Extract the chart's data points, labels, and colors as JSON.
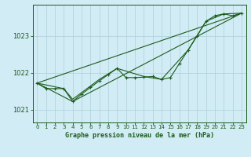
{
  "title": "Graphe pression niveau de la mer (hPa)",
  "background_color": "#d1ecf5",
  "grid_color": "#aecfdb",
  "line_color": "#1a5c1a",
  "xlim": [
    -0.5,
    23.5
  ],
  "ylim": [
    1020.65,
    1023.85
  ],
  "yticks": [
    1021,
    1022,
    1023
  ],
  "xticks": [
    0,
    1,
    2,
    3,
    4,
    5,
    6,
    7,
    8,
    9,
    10,
    11,
    12,
    13,
    14,
    15,
    16,
    17,
    18,
    19,
    20,
    21,
    22,
    23
  ],
  "series_detailed": {
    "x": [
      0,
      1,
      2,
      3,
      4,
      5,
      6,
      7,
      8,
      9,
      10,
      11,
      12,
      13,
      14,
      15,
      16,
      17,
      18,
      19,
      20,
      21,
      22,
      23
    ],
    "y": [
      1021.72,
      1021.57,
      1021.57,
      1021.57,
      1021.22,
      1021.42,
      1021.6,
      1021.78,
      1021.95,
      1022.12,
      1021.87,
      1021.87,
      1021.88,
      1021.9,
      1021.82,
      1021.87,
      1022.25,
      1022.62,
      1023.0,
      1023.4,
      1023.55,
      1023.6,
      1023.55,
      1023.62
    ]
  },
  "series_straight1": {
    "x": [
      0,
      23
    ],
    "y": [
      1021.72,
      1023.62
    ]
  },
  "series_straight2": {
    "x": [
      0,
      4,
      23
    ],
    "y": [
      1021.72,
      1021.22,
      1023.62
    ]
  },
  "series_medium": {
    "x": [
      0,
      3,
      4,
      7,
      9,
      12,
      14,
      17,
      19,
      21,
      23
    ],
    "y": [
      1021.72,
      1021.57,
      1021.28,
      1021.82,
      1022.12,
      1021.9,
      1021.82,
      1022.62,
      1023.4,
      1023.6,
      1023.62
    ]
  },
  "series_sparse": {
    "x": [
      0,
      2,
      4,
      6,
      9,
      11,
      14,
      16,
      18,
      20,
      22,
      23
    ],
    "y": [
      1021.72,
      1021.57,
      1021.25,
      1021.62,
      1022.12,
      1021.87,
      1021.82,
      1022.35,
      1022.92,
      1023.5,
      1023.55,
      1023.62
    ]
  }
}
